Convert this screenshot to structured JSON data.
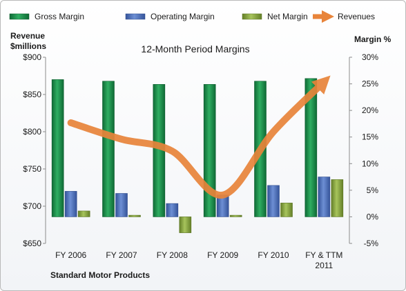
{
  "chart_data": {
    "type": "bar",
    "title": "12-Month Period Margins",
    "company": "Standard Motor Products",
    "categories": [
      [
        "FY 2006"
      ],
      [
        "FY 2007"
      ],
      [
        "FY 2008"
      ],
      [
        "FY 2009"
      ],
      [
        "FY 2010"
      ],
      [
        "FY & TTM",
        "2011"
      ]
    ],
    "left_axis": {
      "label_lines": [
        "Revenue",
        "$millions"
      ],
      "min": 650,
      "max": 900,
      "step": 50,
      "tick_labels": [
        "$650",
        "$700",
        "$750",
        "$800",
        "$850",
        "$900"
      ]
    },
    "right_axis": {
      "label": "Margin %",
      "min": -5,
      "max": 30,
      "step": 5,
      "tick_labels": [
        "-5%",
        "0%",
        "5%",
        "10%",
        "15%",
        "20%",
        "25%",
        "30%"
      ]
    },
    "bar_series": [
      {
        "name": "Gross Margin",
        "axis": "right",
        "unit": "%",
        "color": "#1e8a4a",
        "values": [
          25.8,
          25.5,
          24.9,
          24.9,
          25.5,
          26.0
        ]
      },
      {
        "name": "Operating Margin",
        "axis": "right",
        "unit": "%",
        "color": "#4a6cb5",
        "values": [
          4.8,
          4.4,
          2.5,
          4.1,
          5.9,
          7.5
        ]
      },
      {
        "name": "Net Margin",
        "axis": "right",
        "unit": "%",
        "color": "#84a83a",
        "values": [
          1.1,
          0.3,
          -3.0,
          0.3,
          2.6,
          7.0
        ]
      }
    ],
    "line_series": [
      {
        "name": "Revenues",
        "axis": "left",
        "unit": "$millions",
        "color": "#e8843a",
        "values": [
          812,
          790,
          774,
          715,
          800,
          867
        ]
      }
    ],
    "legend_position": "top",
    "grid": false
  }
}
